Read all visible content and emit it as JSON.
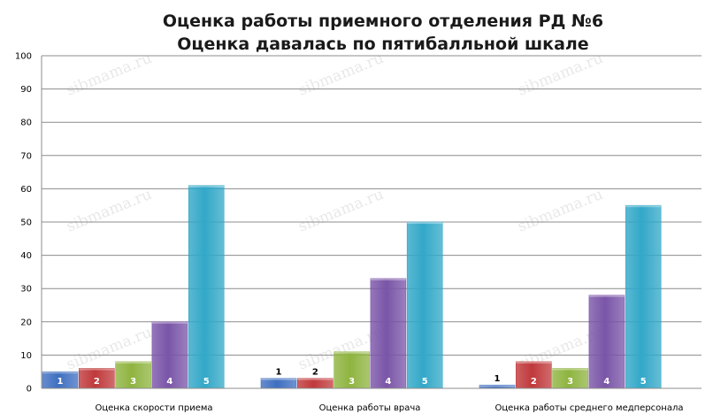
{
  "chart_data": {
    "type": "bar",
    "title": "Оценка работы приемного отделения РД №6",
    "subtitle": "Оценка давалась по пятибалльной шкале",
    "xlabel": "",
    "ylabel": "",
    "ylim": [
      0,
      100
    ],
    "yticks": [
      0,
      10,
      20,
      30,
      40,
      50,
      60,
      70,
      80,
      90,
      100
    ],
    "grid": true,
    "legend": "none",
    "categories": [
      "Оценка скорости приема",
      "Оценка работы врача",
      "Оценка работы среднего медперсонала"
    ],
    "series": [
      {
        "label": "1",
        "color": "#3f6fc0",
        "values": [
          5,
          3,
          1
        ]
      },
      {
        "label": "2",
        "color": "#c0393b",
        "values": [
          6,
          3,
          8
        ]
      },
      {
        "label": "3",
        "color": "#8fb440",
        "values": [
          8,
          11,
          6
        ]
      },
      {
        "label": "4",
        "color": "#7a55a8",
        "values": [
          20,
          33,
          28
        ]
      },
      {
        "label": "5",
        "color": "#32a8c8",
        "values": [
          61,
          50,
          55
        ]
      }
    ]
  },
  "watermark": "sibmama.ru"
}
